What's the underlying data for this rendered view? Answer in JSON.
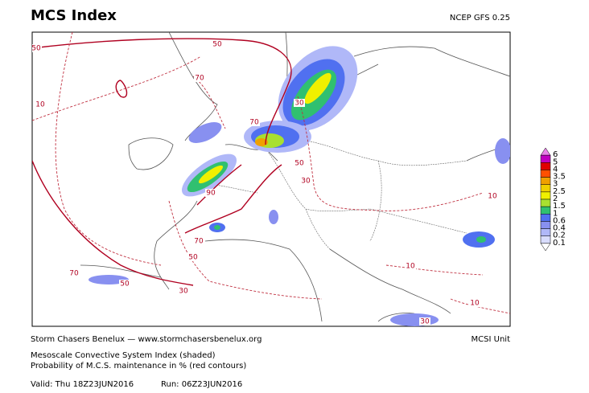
{
  "header": {
    "title": "MCS Index",
    "model": "NCEP GFS 0.25"
  },
  "colorbar": {
    "labels": [
      6,
      5,
      4,
      3.5,
      3,
      2.5,
      2,
      1.5,
      1,
      0.6,
      0.4,
      0.2,
      0.1
    ],
    "colors": [
      "#e880e8",
      "#c000c0",
      "#e00000",
      "#ff5000",
      "#f0a000",
      "#f0d000",
      "#f0f000",
      "#a8e030",
      "#30c070",
      "#5070f0",
      "#8890f0",
      "#b0b8f8",
      "#d8dcfc",
      "#ffffff"
    ]
  },
  "contour_labels": [
    50,
    50,
    70,
    10,
    70,
    30,
    90,
    50,
    30,
    70,
    50,
    70,
    50,
    30,
    10,
    10,
    10,
    30
  ],
  "footer": {
    "source": "Storm Chasers Benelux — www.stormchasersbenelux.org",
    "unit": "MCSI Unit",
    "description": [
      "Mesoscale Convective System Index (shaded)",
      "Probability of M.C.S. maintenance in % (red contours)"
    ],
    "valid": "Valid: Thu 18Z23JUN2016",
    "run": "Run: 06Z23JUN2016"
  }
}
